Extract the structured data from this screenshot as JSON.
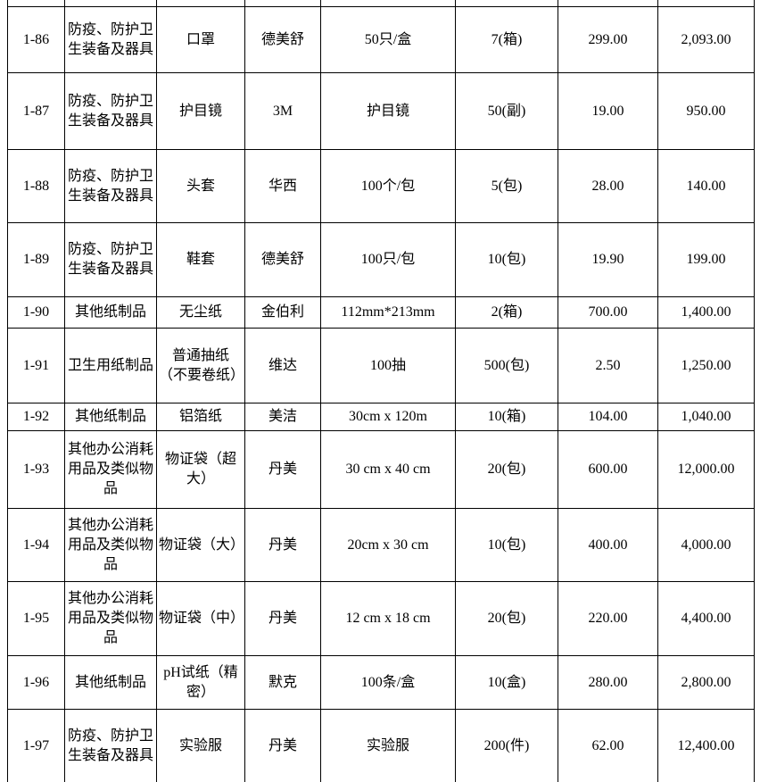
{
  "table": {
    "columns_order": [
      "id",
      "category",
      "item",
      "brand",
      "spec",
      "qty",
      "unit_price",
      "total"
    ],
    "rows": [
      {
        "id": "1-86",
        "category": "防疫、防护卫生装备及器具",
        "item": "口罩",
        "brand": "德美舒",
        "spec": "50只/盒",
        "qty": "7(箱)",
        "unit_price": "299.00",
        "total": "2,093.00"
      },
      {
        "id": "1-87",
        "category": "防疫、防护卫生装备及器具",
        "item": "护目镜",
        "brand": "3M",
        "spec": "护目镜",
        "qty": "50(副)",
        "unit_price": "19.00",
        "total": "950.00"
      },
      {
        "id": "1-88",
        "category": "防疫、防护卫生装备及器具",
        "item": "头套",
        "brand": "华西",
        "spec": "100个/包",
        "qty": "5(包)",
        "unit_price": "28.00",
        "total": "140.00"
      },
      {
        "id": "1-89",
        "category": "防疫、防护卫生装备及器具",
        "item": "鞋套",
        "brand": "德美舒",
        "spec": "100只/包",
        "qty": "10(包)",
        "unit_price": "19.90",
        "total": "199.00"
      },
      {
        "id": "1-90",
        "category": "其他纸制品",
        "item": "无尘纸",
        "brand": "金伯利",
        "spec": "112mm*213mm",
        "qty": "2(箱)",
        "unit_price": "700.00",
        "total": "1,400.00"
      },
      {
        "id": "1-91",
        "category": "卫生用纸制品",
        "item": "普通抽纸（不要卷纸）",
        "brand": "维达",
        "spec": "100抽",
        "qty": "500(包)",
        "unit_price": "2.50",
        "total": "1,250.00"
      },
      {
        "id": "1-92",
        "category": "其他纸制品",
        "item": "铝箔纸",
        "brand": "美洁",
        "spec": "30cm x 120m",
        "qty": "10(箱)",
        "unit_price": "104.00",
        "total": "1,040.00"
      },
      {
        "id": "1-93",
        "category": "其他办公消耗用品及类似物品",
        "item": "物证袋（超大）",
        "brand": "丹美",
        "spec": "30 cm x 40 cm",
        "qty": "20(包)",
        "unit_price": "600.00",
        "total": "12,000.00"
      },
      {
        "id": "1-94",
        "category": "其他办公消耗用品及类似物品",
        "item": "物证袋（大）",
        "brand": "丹美",
        "spec": "20cm x 30 cm",
        "qty": "10(包)",
        "unit_price": "400.00",
        "total": "4,000.00"
      },
      {
        "id": "1-95",
        "category": "其他办公消耗用品及类似物品",
        "item": "物证袋（中）",
        "brand": "丹美",
        "spec": "12 cm x 18 cm",
        "qty": "20(包)",
        "unit_price": "220.00",
        "total": "4,400.00"
      },
      {
        "id": "1-96",
        "category": "其他纸制品",
        "item": "pH试纸（精密）",
        "brand": "默克",
        "spec": "100条/盒",
        "qty": "10(盒)",
        "unit_price": "280.00",
        "total": "2,800.00"
      },
      {
        "id": "1-97",
        "category": "防疫、防护卫生装备及器具",
        "item": "实验服",
        "brand": "丹美",
        "spec": "实验服",
        "qty": "200(件)",
        "unit_price": "62.00",
        "total": "12,400.00"
      }
    ],
    "colors": {
      "border": "#000000",
      "text": "#000000",
      "background": "#ffffff"
    }
  }
}
